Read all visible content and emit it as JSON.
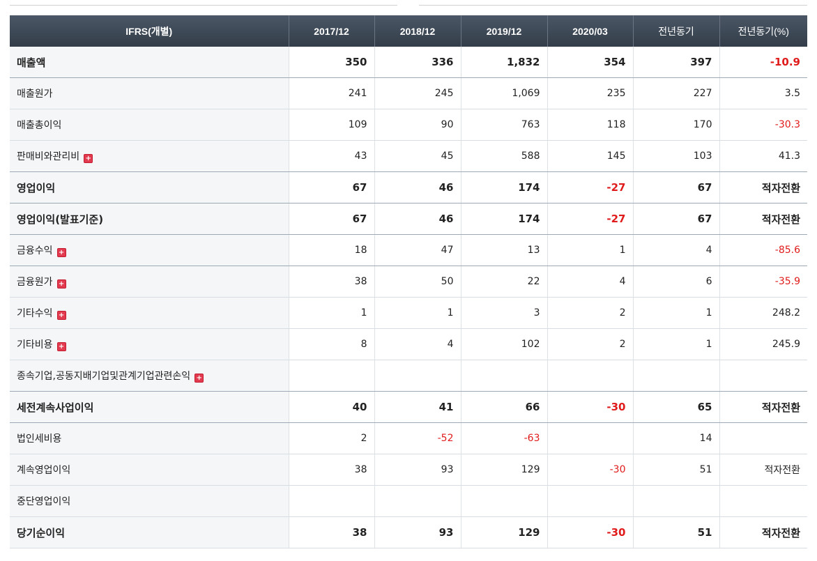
{
  "header": {
    "label": "IFRS(개별)",
    "cols": [
      "2017/12",
      "2018/12",
      "2019/12",
      "2020/03",
      "전년동기",
      "전년동기(%)"
    ]
  },
  "colors": {
    "negative": "#e01b1b",
    "header_bg": "#3c4652",
    "label_bg": "#f4f6f8",
    "expand_icon": "#e23a4e"
  },
  "rows": [
    {
      "label": "매출액",
      "bold": true,
      "expand": false,
      "values": [
        "350",
        "336",
        "1,832",
        "354",
        "397",
        "-10.9"
      ]
    },
    {
      "label": "매출원가",
      "bold": false,
      "expand": false,
      "values": [
        "241",
        "245",
        "1,069",
        "235",
        "227",
        "3.5"
      ]
    },
    {
      "label": "매출총이익",
      "bold": false,
      "expand": false,
      "values": [
        "109",
        "90",
        "763",
        "118",
        "170",
        "-30.3"
      ]
    },
    {
      "label": "판매비와관리비",
      "bold": false,
      "expand": true,
      "values": [
        "43",
        "45",
        "588",
        "145",
        "103",
        "41.3"
      ]
    },
    {
      "label": "영업이익",
      "bold": true,
      "expand": false,
      "values": [
        "67",
        "46",
        "174",
        "-27",
        "67",
        "적자전환"
      ]
    },
    {
      "label": "영업이익(발표기준)",
      "bold": true,
      "expand": false,
      "values": [
        "67",
        "46",
        "174",
        "-27",
        "67",
        "적자전환"
      ]
    },
    {
      "label": "금융수익",
      "bold": false,
      "expand": true,
      "values": [
        "18",
        "47",
        "13",
        "1",
        "4",
        "-85.6"
      ]
    },
    {
      "label": "금융원가",
      "bold": false,
      "expand": true,
      "values": [
        "38",
        "50",
        "22",
        "4",
        "6",
        "-35.9"
      ]
    },
    {
      "label": "기타수익",
      "bold": false,
      "expand": true,
      "values": [
        "1",
        "1",
        "3",
        "2",
        "1",
        "248.2"
      ]
    },
    {
      "label": "기타비용",
      "bold": false,
      "expand": true,
      "values": [
        "8",
        "4",
        "102",
        "2",
        "1",
        "245.9"
      ]
    },
    {
      "label": "종속기업,공동지배기업및관계기업관련손익",
      "bold": false,
      "expand": true,
      "values": [
        "",
        "",
        "",
        "",
        "",
        ""
      ]
    },
    {
      "label": "세전계속사업이익",
      "bold": true,
      "expand": false,
      "values": [
        "40",
        "41",
        "66",
        "-30",
        "65",
        "적자전환"
      ]
    },
    {
      "label": "법인세비용",
      "bold": false,
      "expand": false,
      "values": [
        "2",
        "-52",
        "-63",
        "",
        "14",
        ""
      ]
    },
    {
      "label": "계속영업이익",
      "bold": false,
      "expand": false,
      "values": [
        "38",
        "93",
        "129",
        "-30",
        "51",
        "적자전환"
      ]
    },
    {
      "label": "중단영업이익",
      "bold": false,
      "expand": false,
      "values": [
        "",
        "",
        "",
        "",
        "",
        ""
      ]
    },
    {
      "label": "당기순이익",
      "bold": true,
      "expand": false,
      "values": [
        "38",
        "93",
        "129",
        "-30",
        "51",
        "적자전환"
      ]
    }
  ]
}
